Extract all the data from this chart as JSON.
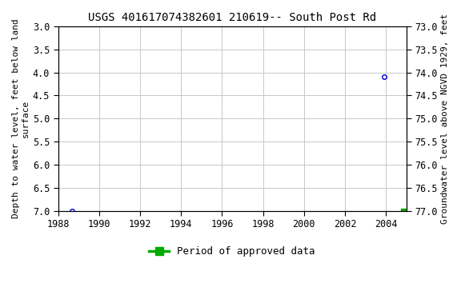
{
  "title": "USGS 401617074382601 210619-- South Post Rd",
  "ylabel_left": "Depth to water level, feet below land\nsurface",
  "ylabel_right": "Groundwater level above NGVD 1929, feet",
  "xlim": [
    1988,
    2005
  ],
  "ylim_left": [
    3.0,
    7.0
  ],
  "ylim_right_bottom": 73.0,
  "ylim_right_top": 77.0,
  "yticks_left": [
    3.0,
    3.5,
    4.0,
    4.5,
    5.0,
    5.5,
    6.0,
    6.5,
    7.0
  ],
  "yticks_right": [
    77.0,
    76.5,
    76.0,
    75.5,
    75.0,
    74.5,
    74.0,
    73.5,
    73.0
  ],
  "xticks": [
    1988,
    1990,
    1992,
    1994,
    1996,
    1998,
    2000,
    2002,
    2004
  ],
  "data_x": [
    1988.7,
    2003.9
  ],
  "data_y": [
    7.0,
    4.1
  ],
  "data_color": "#0000cc",
  "marker_size": 4,
  "grid_color": "#c8c8c8",
  "bg_color": "#ffffff",
  "legend_label": "Period of approved data",
  "legend_color": "#00aa00",
  "font_family": "monospace",
  "title_fontsize": 10,
  "label_fontsize": 8,
  "tick_fontsize": 8.5,
  "legend_fontsize": 9,
  "green_square_x": [
    2004.85
  ],
  "green_square_y": [
    7.0
  ]
}
